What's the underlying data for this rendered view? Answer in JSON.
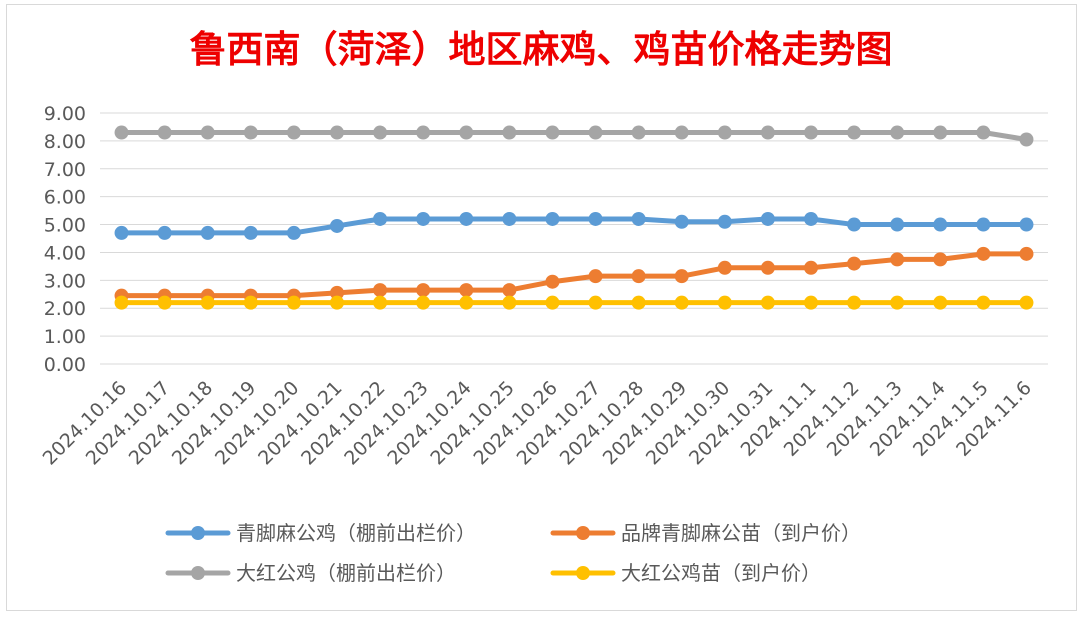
{
  "chart_data": {
    "type": "line",
    "title": "鲁西南（菏泽）地区麻鸡、鸡苗价格走势图",
    "xlabel": "",
    "ylabel": "",
    "ylim": [
      0,
      9
    ],
    "y_ticks": [
      "0.00",
      "1.00",
      "2.00",
      "3.00",
      "4.00",
      "5.00",
      "6.00",
      "7.00",
      "8.00",
      "9.00"
    ],
    "grid": true,
    "legend_position": "bottom",
    "categories": [
      "2024.10.16",
      "2024.10.17",
      "2024.10.18",
      "2024.10.19",
      "2024.10.20",
      "2024.10.21",
      "2024.10.22",
      "2024.10.23",
      "2024.10.24",
      "2024.10.25",
      "2024.10.26",
      "2024.10.27",
      "2024.10.28",
      "2024.10.29",
      "2024.10.30",
      "2024.10.31",
      "2024.11.1",
      "2024.11.2",
      "2024.11.3",
      "2024.11.4",
      "2024.11.5",
      "2024.11.6"
    ],
    "series": [
      {
        "name": "青脚麻公鸡（棚前出栏价）",
        "color": "#5b9bd5",
        "values": [
          4.7,
          4.7,
          4.7,
          4.7,
          4.7,
          4.95,
          5.2,
          5.2,
          5.2,
          5.2,
          5.2,
          5.2,
          5.2,
          5.1,
          5.1,
          5.2,
          5.2,
          5.0,
          5.0,
          5.0,
          5.0,
          5.0
        ]
      },
      {
        "name": "品牌青脚麻公苗（到户价）",
        "color": "#ed7d31",
        "values": [
          2.45,
          2.45,
          2.45,
          2.45,
          2.45,
          2.55,
          2.65,
          2.65,
          2.65,
          2.65,
          2.95,
          3.15,
          3.15,
          3.15,
          3.45,
          3.45,
          3.45,
          3.6,
          3.75,
          3.75,
          3.95,
          3.95
        ]
      },
      {
        "name": "大红公鸡（棚前出栏价）",
        "color": "#a5a5a5",
        "values": [
          8.3,
          8.3,
          8.3,
          8.3,
          8.3,
          8.3,
          8.3,
          8.3,
          8.3,
          8.3,
          8.3,
          8.3,
          8.3,
          8.3,
          8.3,
          8.3,
          8.3,
          8.3,
          8.3,
          8.3,
          8.3,
          8.05
        ]
      },
      {
        "name": "大红公鸡苗（到户价）",
        "color": "#ffc000",
        "values": [
          2.2,
          2.2,
          2.2,
          2.2,
          2.2,
          2.2,
          2.2,
          2.2,
          2.2,
          2.2,
          2.2,
          2.2,
          2.2,
          2.2,
          2.2,
          2.2,
          2.2,
          2.2,
          2.2,
          2.2,
          2.2,
          2.2
        ]
      }
    ],
    "series_draw_order": [
      2,
      0,
      1,
      3
    ],
    "legend_order": [
      0,
      1,
      2,
      3
    ]
  }
}
